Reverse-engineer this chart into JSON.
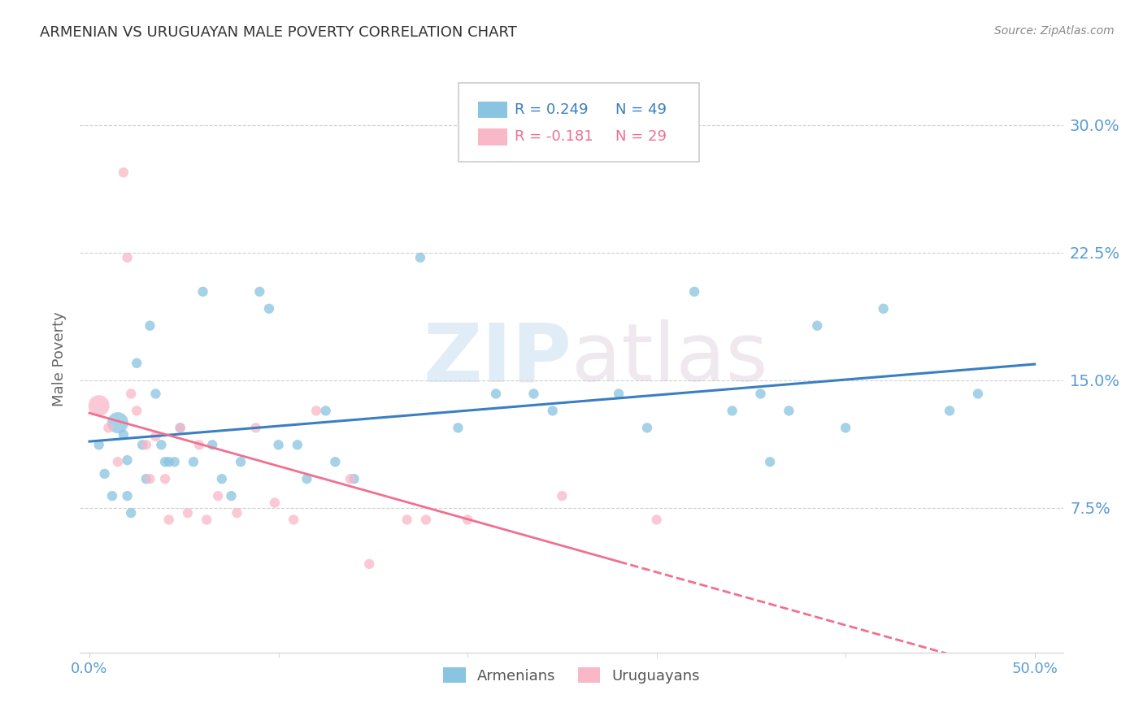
{
  "title": "ARMENIAN VS URUGUAYAN MALE POVERTY CORRELATION CHART",
  "source": "Source: ZipAtlas.com",
  "ylabel": "Male Poverty",
  "ytick_labels": [
    "30.0%",
    "22.5%",
    "15.0%",
    "7.5%"
  ],
  "ytick_values": [
    0.3,
    0.225,
    0.15,
    0.075
  ],
  "xlim": [
    -0.005,
    0.515
  ],
  "ylim": [
    -0.01,
    0.335
  ],
  "armenian_color": "#89c4e1",
  "uruguayan_color": "#f9b8c8",
  "armenian_line_color": "#3a7fc1",
  "uruguayan_line_color": "#f07090",
  "legend_r_armenian": "R = 0.249",
  "legend_n_armenian": "N = 49",
  "legend_r_uruguayan": "R = -0.181",
  "legend_n_uruguayan": "N = 29",
  "watermark_zip": "ZIP",
  "watermark_atlas": "atlas",
  "armenian_x": [
    0.005,
    0.008,
    0.012,
    0.015,
    0.018,
    0.02,
    0.02,
    0.022,
    0.025,
    0.028,
    0.03,
    0.032,
    0.035,
    0.038,
    0.04,
    0.042,
    0.045,
    0.048,
    0.055,
    0.06,
    0.065,
    0.07,
    0.075,
    0.08,
    0.09,
    0.095,
    0.1,
    0.11,
    0.115,
    0.125,
    0.13,
    0.14,
    0.175,
    0.195,
    0.215,
    0.235,
    0.245,
    0.28,
    0.295,
    0.32,
    0.34,
    0.355,
    0.36,
    0.37,
    0.385,
    0.4,
    0.42,
    0.455,
    0.47
  ],
  "armenian_y": [
    0.112,
    0.095,
    0.082,
    0.125,
    0.118,
    0.103,
    0.082,
    0.072,
    0.16,
    0.112,
    0.092,
    0.182,
    0.142,
    0.112,
    0.102,
    0.102,
    0.102,
    0.122,
    0.102,
    0.202,
    0.112,
    0.092,
    0.082,
    0.102,
    0.202,
    0.192,
    0.112,
    0.112,
    0.092,
    0.132,
    0.102,
    0.092,
    0.222,
    0.122,
    0.142,
    0.142,
    0.132,
    0.142,
    0.122,
    0.202,
    0.132,
    0.142,
    0.102,
    0.132,
    0.182,
    0.122,
    0.192,
    0.132,
    0.142
  ],
  "armenian_size": [
    80,
    80,
    80,
    350,
    80,
    80,
    80,
    80,
    80,
    80,
    80,
    80,
    80,
    80,
    80,
    80,
    80,
    80,
    80,
    80,
    80,
    80,
    80,
    80,
    80,
    80,
    80,
    80,
    80,
    80,
    80,
    80,
    80,
    80,
    80,
    80,
    80,
    80,
    80,
    80,
    80,
    80,
    80,
    80,
    80,
    80,
    80,
    80,
    80
  ],
  "uruguayan_x": [
    0.005,
    0.01,
    0.015,
    0.018,
    0.02,
    0.022,
    0.025,
    0.03,
    0.032,
    0.035,
    0.04,
    0.042,
    0.048,
    0.052,
    0.058,
    0.062,
    0.068,
    0.078,
    0.088,
    0.098,
    0.108,
    0.12,
    0.138,
    0.148,
    0.168,
    0.178,
    0.2,
    0.25,
    0.3
  ],
  "uruguayan_y": [
    0.135,
    0.122,
    0.102,
    0.272,
    0.222,
    0.142,
    0.132,
    0.112,
    0.092,
    0.117,
    0.092,
    0.068,
    0.122,
    0.072,
    0.112,
    0.068,
    0.082,
    0.072,
    0.122,
    0.078,
    0.068,
    0.132,
    0.092,
    0.042,
    0.068,
    0.068,
    0.068,
    0.082,
    0.068
  ],
  "uruguayan_size": [
    350,
    80,
    80,
    80,
    80,
    80,
    80,
    80,
    80,
    80,
    80,
    80,
    80,
    80,
    80,
    80,
    80,
    80,
    80,
    80,
    80,
    80,
    80,
    80,
    80,
    80,
    80,
    80,
    80
  ],
  "background_color": "#ffffff",
  "grid_color": "#d0d0d0",
  "title_color": "#333333",
  "tick_label_color": "#5b9bd5",
  "source_color": "#888888",
  "xtick_positions": [
    0.0,
    0.5
  ],
  "xtick_labels": [
    "0.0%",
    "50.0%"
  ]
}
